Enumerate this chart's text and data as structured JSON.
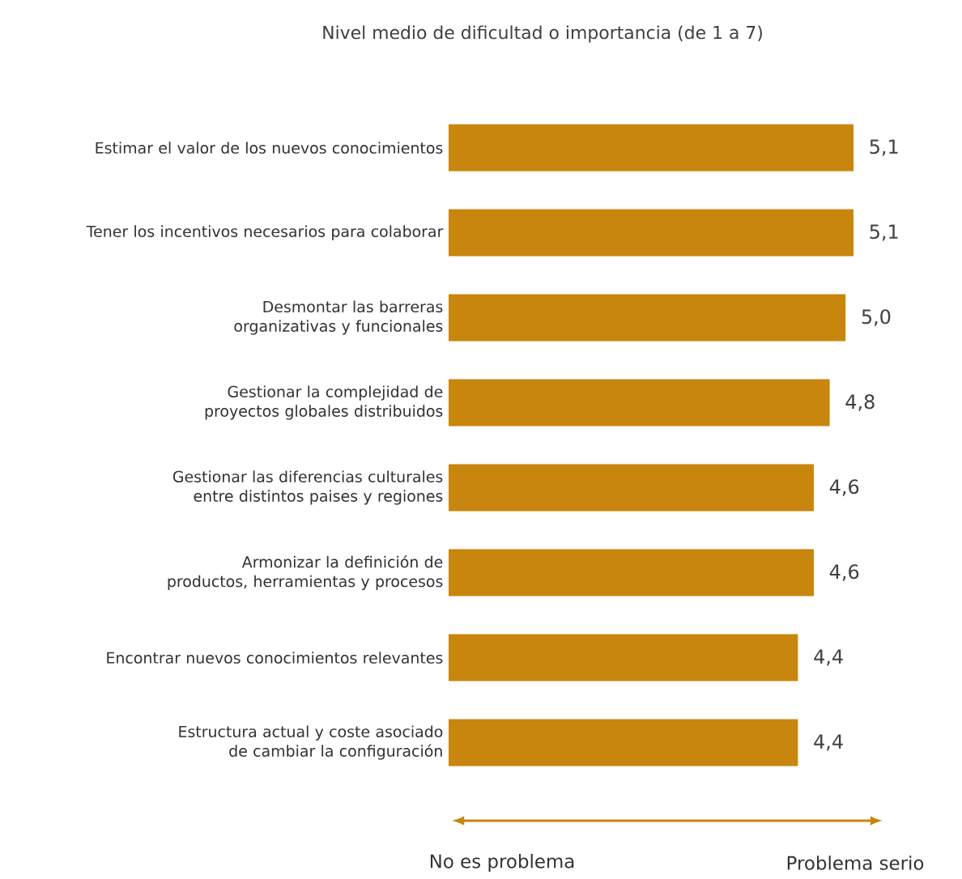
{
  "chart_data": {
    "type": "bar",
    "orientation": "horizontal",
    "title": "Nivel medio de dificultad o importancia (de 1 a 7)",
    "categories": [
      "Estimar el valor de los nuevos conocimientos",
      "Tener los incentivos necesarios para colaborar",
      "Desmontar las barreras organizativas y funcionales",
      "Gestionar la complejidad de proyectos globales distribuidos",
      "Gestionar las diferencias culturales entre distintos paises y regiones",
      "Armonizar la definición de productos, herramientas y procesos",
      "Encontrar nuevos conocimientos relevantes",
      "Estructura actual y coste asociado de cambiar la configuración"
    ],
    "values": [
      5.1,
      5.1,
      5.0,
      4.8,
      4.6,
      4.6,
      4.4,
      4.4
    ],
    "color": "#c8860f",
    "value_labels": [
      "5,1",
      "5,1",
      "5,0",
      "4,8",
      "4,6",
      "4,6",
      "4,4",
      "4,4"
    ],
    "tick_labels": "y",
    "annotations": [
      "No es problema",
      "Problema serio"
    ]
  }
}
